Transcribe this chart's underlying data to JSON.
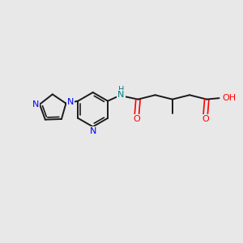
{
  "background_color": "#e8e8e8",
  "bond_color": "#1a1a1a",
  "nitrogen_color": "#0000ff",
  "oxygen_color": "#ff0000",
  "nh_color": "#008080",
  "figsize": [
    3.0,
    3.0
  ],
  "dpi": 100,
  "xlim": [
    0,
    10
  ],
  "ylim": [
    0,
    10
  ]
}
